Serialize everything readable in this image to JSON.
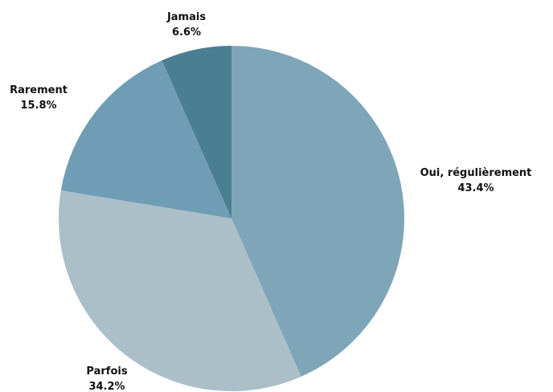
{
  "chart_data": {
    "type": "pie",
    "categories": [
      "Oui, régulièrement",
      "Parfois",
      "Rarement",
      "Jamais"
    ],
    "values": [
      43.4,
      34.2,
      15.8,
      6.6
    ],
    "value_labels": [
      "43.4%",
      "34.2%",
      "15.8%",
      "6.6%"
    ],
    "colors": [
      "#7fa6b8",
      "#aabfc8",
      "#6f9db6",
      "#4a7f93"
    ],
    "start_angle": "12 o'clock",
    "direction": "clockwise",
    "legend": "none"
  }
}
